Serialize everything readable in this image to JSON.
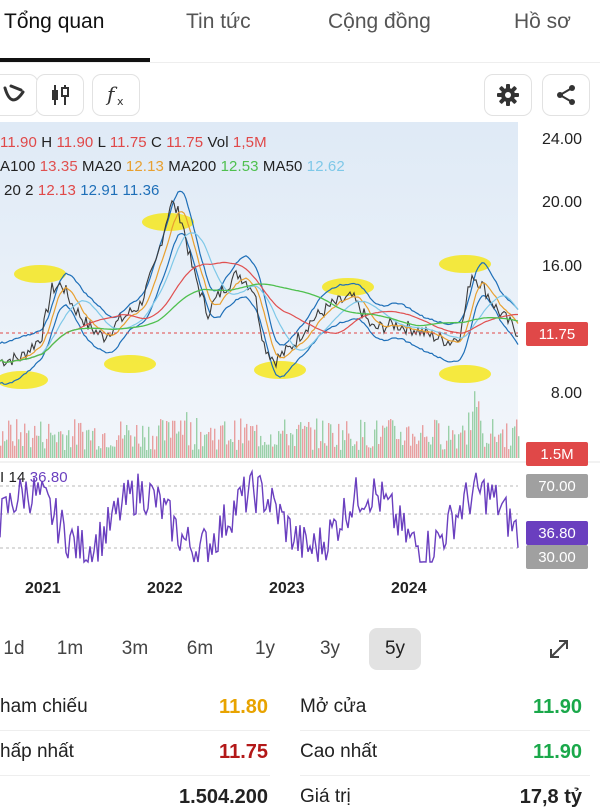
{
  "tabs": [
    {
      "label": "Tổng quan",
      "active": true
    },
    {
      "label": "Tin tức",
      "active": false
    },
    {
      "label": "Cộng đồng",
      "active": false
    },
    {
      "label": "Hồ sơ",
      "active": false
    }
  ],
  "toolbar": {
    "icons": [
      "drawing-tool-icon",
      "candlestick-icon",
      "function-icon",
      "gear-icon",
      "share-icon"
    ]
  },
  "ohlc": {
    "o_value": "11.90",
    "h_label": "H",
    "h_value": "11.90",
    "l_label": "L",
    "l_value": "11.75",
    "c_label": "C",
    "c_value": "11.75",
    "vol_label": "Vol",
    "vol_value": "1,5M"
  },
  "ma": {
    "ma100_label": "A100",
    "ma100_value": "13.35",
    "ma20_label": "MA20",
    "ma20_value": "12.13",
    "ma200_label": "MA200",
    "ma200_value": "12.53",
    "ma50_label": "MA50",
    "ma50_value": "12.62"
  },
  "bb": {
    "label": "20 2",
    "v1": "12.13",
    "v2": "12.91",
    "v3": "11.36"
  },
  "rsi": {
    "label": "I 14",
    "value": "36.80"
  },
  "price_axis": [
    "24.00",
    "20.00",
    "16.00",
    "8.00"
  ],
  "badges": {
    "price": "11.75",
    "volume": "1.5M",
    "rsi_high": "70.00",
    "rsi_current": "36.80",
    "rsi_low": "30.00"
  },
  "years": [
    "2021",
    "2022",
    "2023",
    "2024"
  ],
  "ranges": [
    {
      "label": "1d",
      "active": false
    },
    {
      "label": "1m",
      "active": false
    },
    {
      "label": "3m",
      "active": false
    },
    {
      "label": "6m",
      "active": false
    },
    {
      "label": "1y",
      "active": false
    },
    {
      "label": "3y",
      "active": false
    },
    {
      "label": "5y",
      "active": true
    }
  ],
  "stats": {
    "ref_label": "ham chiếu",
    "ref_value": "11.80",
    "open_label": "Mở cửa",
    "open_value": "11.90",
    "low_label": "hấp nhất",
    "low_value": "11.75",
    "high_label": "Cao nhất",
    "high_value": "11.90",
    "vol_value": "1.504.200",
    "val_label": "Giá trị",
    "val_value": "17,8 tỷ"
  },
  "colors": {
    "up": "#1aa84a",
    "down": "#e04848",
    "ma20": "#e8a030",
    "ma50": "#7ec8e8",
    "ma100": "#e05050",
    "ma200": "#4fc04f",
    "bb": "#1e6fb8",
    "rsi": "#6a3fbf",
    "highlight": "#f7e600"
  }
}
